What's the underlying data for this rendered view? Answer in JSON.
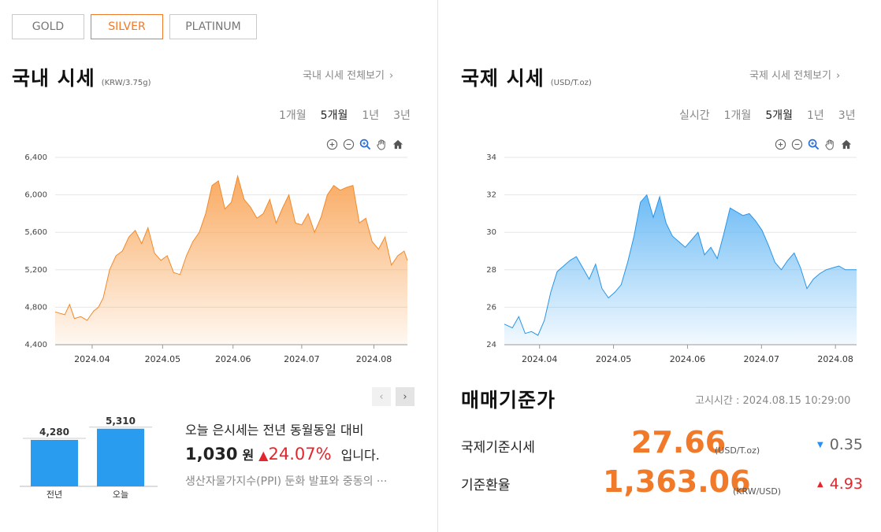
{
  "metal_tabs": [
    "GOLD",
    "SILVER",
    "PLATINUM"
  ],
  "active_metal": "SILVER",
  "domestic": {
    "title": "국내 시세",
    "unit": "(KRW/3.75g)",
    "view_all": "국내 시세 전체보기",
    "periods": [
      "1개월",
      "5개월",
      "1년",
      "3년"
    ],
    "active_period": "5개월"
  },
  "international": {
    "title": "국제 시세",
    "unit": "(USD/T.oz)",
    "view_all": "국제 시세 전체보기",
    "periods": [
      "실시간",
      "1개월",
      "5개월",
      "1년",
      "3년"
    ],
    "active_period": "5개월"
  },
  "comparison": {
    "line1": "오늘 은시세는 전년 동월동일 대비",
    "diff": "1,030",
    "won": "원",
    "pct": "24.07%",
    "tail": "입니다.",
    "news": "생산자물가지수(PPI) 둔화 발표와 중동의 ···"
  },
  "base_price": {
    "title": "매매기준가",
    "time_label": "고시시간 : 2024.08.15 10:29:00",
    "rows": [
      {
        "label": "국제기준시세",
        "value": "27.66",
        "unit": "(USD/T.oz)",
        "direction": "down",
        "change": "0.35"
      },
      {
        "label": "기준환율",
        "value": "1,363.06",
        "unit": "(KRW/USD)",
        "direction": "up",
        "change": "4.93"
      }
    ]
  },
  "colors": {
    "accent": "#f07a2a",
    "up": "#e3262c",
    "down": "#2a8ff0",
    "bar": "#2a9cf0"
  },
  "chart_data": [
    {
      "type": "area",
      "name": "domestic",
      "x_ticks": [
        "2024.04",
        "2024.05",
        "2024.06",
        "2024.07",
        "2024.08"
      ],
      "y_ticks": [
        "4,400",
        "4,800",
        "5,200",
        "5,600",
        "6,000",
        "6,400"
      ],
      "ylim": [
        4400,
        6400
      ],
      "xlim": [
        0,
        22
      ],
      "grid": true,
      "x": [
        0,
        0.6,
        0.9,
        1.2,
        1.6,
        2.0,
        2.4,
        2.7,
        3.0,
        3.4,
        3.8,
        4.2,
        4.6,
        5.0,
        5.4,
        5.8,
        6.2,
        6.6,
        7.0,
        7.4,
        7.8,
        8.2,
        8.6,
        9.0,
        9.4,
        9.8,
        10.2,
        10.6,
        11.0,
        11.4,
        11.8,
        12.2,
        12.6,
        13.0,
        13.4,
        13.8,
        14.2,
        14.6,
        15.0,
        15.4,
        15.8,
        16.2,
        16.6,
        17.0,
        17.4,
        17.8,
        18.2,
        18.6,
        19.0,
        19.4,
        19.8,
        20.2,
        20.6,
        21.0,
        21.4,
        21.8,
        22
      ],
      "values": [
        4750,
        4720,
        4830,
        4680,
        4700,
        4660,
        4760,
        4800,
        4900,
        5200,
        5350,
        5400,
        5550,
        5620,
        5480,
        5650,
        5380,
        5300,
        5350,
        5170,
        5150,
        5350,
        5500,
        5600,
        5800,
        6100,
        6150,
        5850,
        5920,
        6200,
        5950,
        5870,
        5750,
        5800,
        5950,
        5700,
        5860,
        6000,
        5700,
        5680,
        5800,
        5600,
        5760,
        6000,
        6100,
        6050,
        6080,
        6100,
        5700,
        5750,
        5500,
        5420,
        5550,
        5250,
        5350,
        5400,
        5300
      ]
    },
    {
      "type": "area",
      "name": "international",
      "x_ticks": [
        "2024.04",
        "2024.05",
        "2024.06",
        "2024.07",
        "2024.08"
      ],
      "y_ticks": [
        "24",
        "26",
        "28",
        "30",
        "32",
        "34"
      ],
      "ylim": [
        24,
        34
      ],
      "xlim": [
        0,
        22
      ],
      "grid": true,
      "x": [
        0,
        0.5,
        0.9,
        1.3,
        1.7,
        2.1,
        2.5,
        2.9,
        3.3,
        3.7,
        4.1,
        4.5,
        4.9,
        5.3,
        5.7,
        6.1,
        6.5,
        6.9,
        7.3,
        7.7,
        8.1,
        8.5,
        8.9,
        9.3,
        9.7,
        10.1,
        10.5,
        10.9,
        11.3,
        11.7,
        12.1,
        12.5,
        12.9,
        13.3,
        13.7,
        14.1,
        14.5,
        14.9,
        15.3,
        15.7,
        16.1,
        16.5,
        16.9,
        17.3,
        17.7,
        18.1,
        18.5,
        18.9,
        19.3,
        19.7,
        20.1,
        20.5,
        20.9,
        21.3,
        21.7,
        22
      ],
      "values": [
        25.1,
        24.9,
        25.5,
        24.6,
        24.7,
        24.5,
        25.3,
        26.8,
        27.9,
        28.2,
        28.5,
        28.7,
        28.1,
        27.5,
        28.3,
        27.0,
        26.5,
        26.8,
        27.2,
        28.4,
        29.8,
        31.6,
        32.0,
        30.8,
        31.9,
        30.5,
        29.8,
        29.5,
        29.2,
        29.6,
        30.0,
        28.8,
        29.2,
        28.6,
        29.9,
        31.3,
        31.1,
        30.9,
        31.0,
        30.6,
        30.1,
        29.3,
        28.4,
        28.0,
        28.5,
        28.9,
        28.1,
        27.0,
        27.5,
        27.8,
        28.0,
        28.1,
        28.2,
        28.0,
        28.0,
        28.0
      ]
    },
    {
      "type": "bar",
      "name": "year-compare",
      "categories": [
        "전년",
        "오늘"
      ],
      "values": [
        4280,
        5310
      ],
      "value_labels": [
        "4,280",
        "5,310"
      ],
      "ylim": [
        0,
        5800
      ]
    }
  ]
}
